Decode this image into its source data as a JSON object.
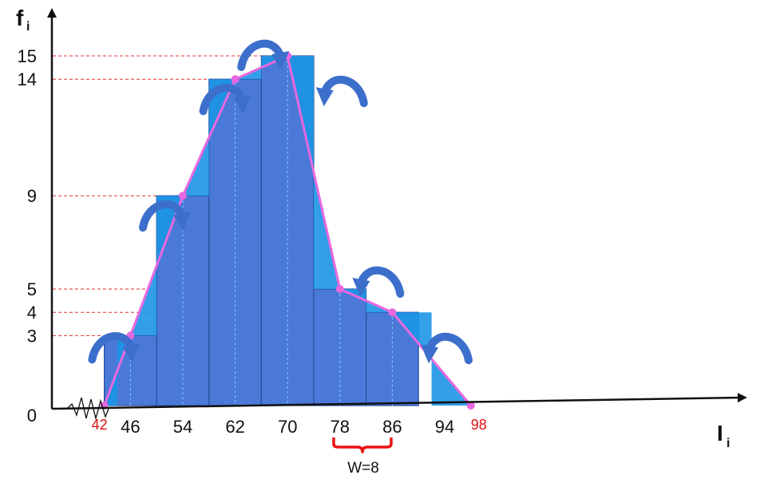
{
  "chart_data": {
    "type": "bar",
    "ylabel": "f",
    "ylabel_sub": "i",
    "xlabel": "I",
    "xlabel_sub": "i",
    "class_width_label": "W=8",
    "class_marks": [
      46,
      54,
      62,
      70,
      78,
      86,
      94
    ],
    "frequencies": [
      3,
      9,
      14,
      15,
      5,
      4,
      0
    ],
    "polygon_endpoints": [
      42,
      98
    ],
    "x_ticks": [
      "46",
      "54",
      "62",
      "70",
      "78",
      "86",
      "94"
    ],
    "x_ticks_red": [
      "42",
      "98"
    ],
    "y_ticks": [
      "0",
      "3",
      "4",
      "5",
      "9",
      "14",
      "15"
    ],
    "y_tick_values": [
      0,
      3,
      4,
      5,
      9,
      14,
      15
    ],
    "xlim": [
      34,
      120
    ],
    "ylim": [
      0,
      16
    ],
    "colors": {
      "bar_fill": "#4a79d8",
      "triangle_fill": "#1c95e6",
      "polygon_line": "#e868e0",
      "guide_line": "#e03030",
      "arrow": "#3c6fcc",
      "axis": "#111111",
      "bracket": "#ee1111",
      "red_tick": "#e01010"
    }
  }
}
